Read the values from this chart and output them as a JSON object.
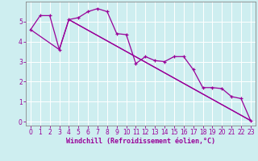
{
  "xlabel": "Windchill (Refroidissement éolien,°C)",
  "bg_color": "#ceeef0",
  "line_color": "#990099",
  "xlim": [
    -0.5,
    23.5
  ],
  "ylim": [
    -0.2,
    6.0
  ],
  "yticks": [
    0,
    1,
    2,
    3,
    4,
    5
  ],
  "xticks": [
    0,
    1,
    2,
    3,
    4,
    5,
    6,
    7,
    8,
    9,
    10,
    11,
    12,
    13,
    14,
    15,
    16,
    17,
    18,
    19,
    20,
    21,
    22,
    23
  ],
  "series1_x": [
    0,
    1,
    2,
    3,
    4,
    5,
    6,
    7,
    8,
    9,
    10,
    11,
    12,
    13,
    14,
    15,
    16,
    17,
    18,
    19,
    20,
    21,
    22,
    23
  ],
  "series1_y": [
    4.6,
    5.3,
    5.3,
    3.6,
    5.1,
    5.2,
    5.5,
    5.65,
    5.5,
    4.4,
    4.35,
    2.9,
    3.25,
    3.05,
    3.0,
    3.25,
    3.25,
    2.6,
    1.7,
    1.7,
    1.65,
    1.25,
    1.15,
    0.05
  ],
  "series2_x": [
    0,
    3,
    4,
    23
  ],
  "series2_y": [
    4.6,
    3.6,
    5.1,
    0.05
  ],
  "series3_x": [
    4,
    23
  ],
  "series3_y": [
    5.1,
    0.05
  ],
  "xlabel_fontsize": 6,
  "tick_fontsize": 5.5
}
